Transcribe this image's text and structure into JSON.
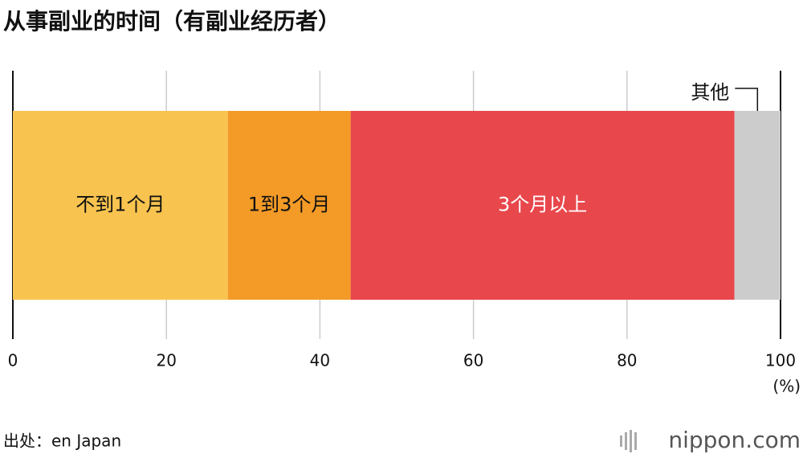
{
  "chart_data": {
    "type": "stacked_bar_horizontal",
    "title": "从事副业的时间（有副业经历者）",
    "series": [
      {
        "name": "不到1个月",
        "color": "#f8c44f",
        "label_color": "#111111",
        "values": [
          28
        ]
      },
      {
        "name": "1到3个月",
        "color": "#f39a27",
        "label_color": "#111111",
        "values": [
          16
        ]
      },
      {
        "name": "3个月以上",
        "color": "#e8474c",
        "label_color": "#ffffff",
        "values": [
          50
        ]
      },
      {
        "name": "其他",
        "color": "#cccccc",
        "label_color": "#111111",
        "values": [
          6
        ]
      }
    ],
    "xlim": [
      0,
      100
    ],
    "xticks": [
      0,
      20,
      40,
      60,
      80,
      100
    ],
    "xlabel": "(%)",
    "grid": true,
    "source": "出处：en Japan",
    "logo": "nippon.com"
  }
}
